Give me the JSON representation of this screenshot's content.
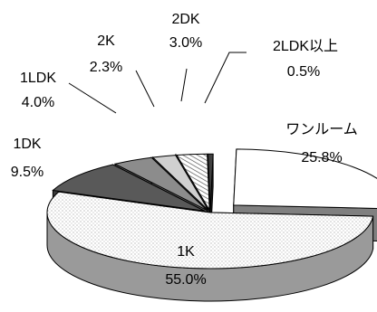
{
  "chart_data": {
    "type": "pie",
    "style": "3d-exploded",
    "slices": [
      {
        "name": "ワンルーム",
        "value": 25.8,
        "label": "25.8%",
        "color": "#ffffff",
        "side": "#808080",
        "pattern": "solid"
      },
      {
        "name": "1K",
        "value": 55.0,
        "label": "55.0%",
        "color": "#f2f2f2",
        "side": "#9a9a9a",
        "pattern": "dots"
      },
      {
        "name": "1DK",
        "value": 9.5,
        "label": "9.5%",
        "color": "#595959",
        "side": "#3a3a3a",
        "pattern": "solid"
      },
      {
        "name": "1LDK",
        "value": 4.0,
        "label": "4.0%",
        "color": "#8c8c8c",
        "side": "#5e5e5e",
        "pattern": "solid"
      },
      {
        "name": "2K",
        "value": 2.3,
        "label": "2.3%",
        "color": "#d0d0d0",
        "side": "#9a9a9a",
        "pattern": "solid"
      },
      {
        "name": "2DK",
        "value": 3.0,
        "label": "3.0%",
        "color": "#ffffff",
        "side": "#9a9a9a",
        "pattern": "hatch"
      },
      {
        "name": "2LDK以上",
        "value": 0.5,
        "label": "0.5%",
        "color": "#404040",
        "side": "#202020",
        "pattern": "solid"
      }
    ],
    "labels": [
      {
        "name": "ワンルーム",
        "value": "25.8%"
      },
      {
        "name": "1K",
        "value": "55.0%"
      },
      {
        "name": "1DK",
        "value": "9.5%"
      },
      {
        "name": "1LDK",
        "value": "4.0%"
      },
      {
        "name": "2K",
        "value": "2.3%"
      },
      {
        "name": "2DK",
        "value": "3.0%"
      },
      {
        "name": "2LDK以上",
        "value": "0.5%"
      }
    ]
  }
}
